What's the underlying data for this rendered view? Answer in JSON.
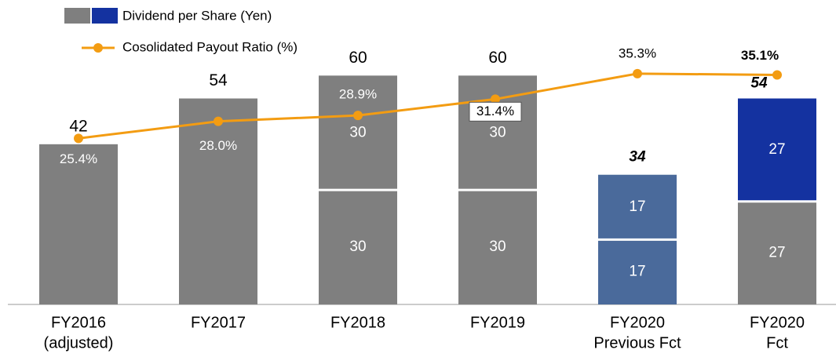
{
  "chart_data": {
    "type": "bar",
    "categories": [
      [
        "FY2016",
        "(adjusted)"
      ],
      [
        "FY2017"
      ],
      [
        "FY2018"
      ],
      [
        "FY2019"
      ],
      [
        "FY2020",
        "Previous Fct"
      ],
      [
        "FY2020",
        "Fct"
      ]
    ],
    "series": [
      {
        "name": "Dividend per Share (Yen)",
        "colors": [
          "#7f7f7f",
          "#7f7f7f",
          "#7f7f7f",
          "#7f7f7f",
          "#4a6a9b",
          "#7f7f7f"
        ],
        "values": [
          42,
          54,
          30,
          30,
          17,
          27
        ]
      },
      {
        "colors": [
          null,
          null,
          "#7f7f7f",
          "#7f7f7f",
          "#4a6a9b",
          "#1432a0"
        ],
        "values": [
          null,
          null,
          30,
          30,
          17,
          27
        ]
      },
      {
        "name": "Cosolidated Payout Ratio (%)",
        "type": "line",
        "axis": "y2",
        "color": "#f39c12",
        "values": [
          25.4,
          28.0,
          28.9,
          31.4,
          35.3,
          35.1
        ],
        "value_labels": [
          "25.4%",
          "28.0%",
          "28.9%",
          "31.4%",
          "35.3%",
          "35.1%"
        ]
      }
    ],
    "legend_colors": [
      "#7f7f7f",
      "#1432a0"
    ],
    "totals": [
      42,
      54,
      60,
      60,
      34,
      54
    ],
    "ylim": [
      0,
      72
    ],
    "y2lim": [
      0,
      42
    ]
  }
}
